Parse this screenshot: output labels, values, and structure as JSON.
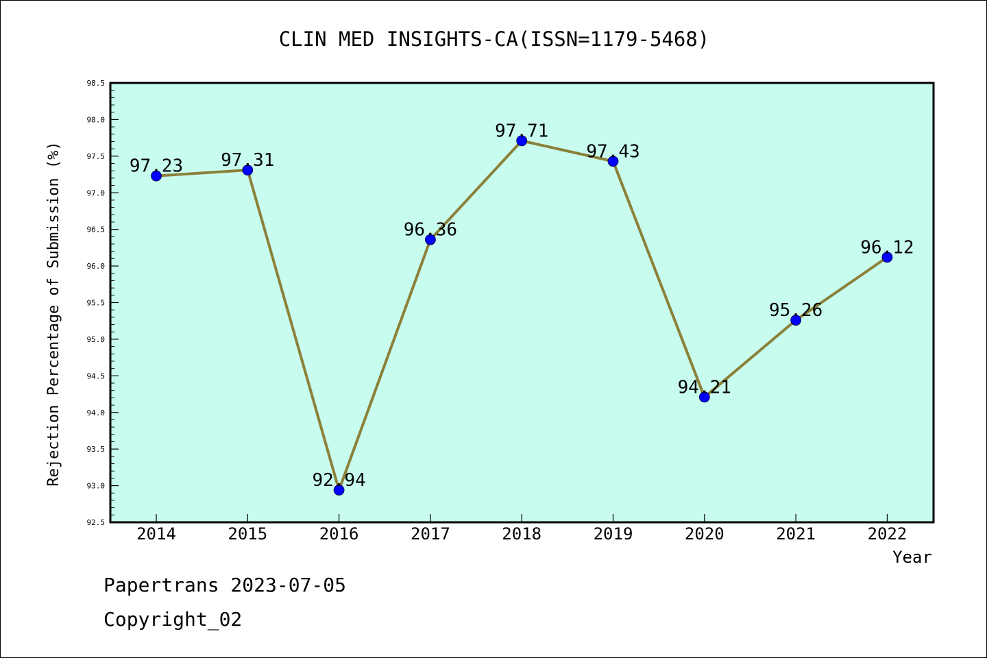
{
  "chart_data": {
    "type": "line",
    "title": "CLIN MED INSIGHTS-CA(ISSN=1179-5468)",
    "xlabel": "Year",
    "ylabel": "Rejection Percentage of Submission (%)",
    "categories": [
      "2014",
      "2015",
      "2016",
      "2017",
      "2018",
      "2019",
      "2020",
      "2021",
      "2022"
    ],
    "series": [
      {
        "values": [
          97.23,
          97.31,
          92.94,
          96.36,
          97.71,
          97.43,
          94.21,
          95.26,
          96.12
        ],
        "value_labels": [
          "97.23",
          "97.31",
          "92.94",
          "96.36",
          "97.71",
          "97.43",
          "94.21",
          "95.26",
          "96.12"
        ]
      }
    ],
    "ylim": [
      92.5,
      98.5
    ],
    "yticks": [
      "92.5",
      "93.0",
      "93.5",
      "94.0",
      "94.5",
      "95.0",
      "95.5",
      "96.0",
      "96.5",
      "97.0",
      "97.5",
      "98.0",
      "98.5"
    ],
    "grid": false,
    "colors": {
      "plot_background": "#c8fcee",
      "line": "#8b8139",
      "marker": "#0000ff"
    }
  },
  "footer": {
    "line1": "Papertrans 2023-07-05",
    "line2": "Copyright_02"
  }
}
